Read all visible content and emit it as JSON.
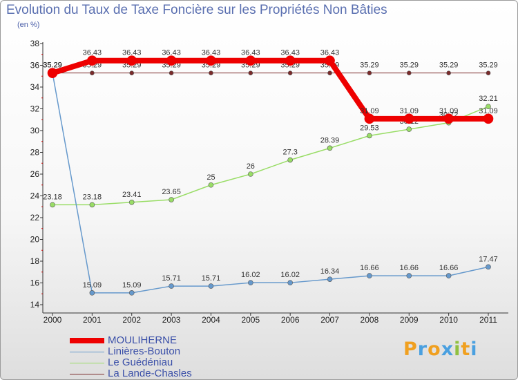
{
  "page": {
    "title": "Evolution du Taux de Taxe Foncière sur les Propriétés Non Bâties",
    "unit": "(en %)"
  },
  "chart_data": {
    "type": "line",
    "title": "Evolution du Taux de Taxe Foncière sur les Propriétés Non Bâties",
    "ylabel": "(en %)",
    "xlabel": "",
    "ylim": [
      14,
      38
    ],
    "yticks": [
      14,
      16,
      18,
      20,
      22,
      24,
      26,
      28,
      30,
      32,
      34,
      36,
      38
    ],
    "categories": [
      "2000",
      "2001",
      "2002",
      "2003",
      "2004",
      "2005",
      "2006",
      "2007",
      "2008",
      "2009",
      "2010",
      "2011"
    ],
    "series": [
      {
        "name": "La Lande-Chasles",
        "color": "#7a2a2a",
        "values": [
          35.29,
          35.29,
          35.29,
          35.29,
          35.29,
          35.29,
          35.29,
          35.29,
          35.29,
          35.29,
          35.29,
          35.29
        ],
        "labels": [
          "35.29",
          "35.29",
          "35.29",
          "35.29",
          "35.29",
          "35.29",
          "35.29",
          "35.29",
          "35.29",
          "35.29",
          "35.29",
          "35.29"
        ]
      },
      {
        "name": "Le Guédéniau",
        "color": "#99dd66",
        "values": [
          23.18,
          23.18,
          23.41,
          23.65,
          25,
          26,
          27.3,
          28.39,
          29.53,
          30.12,
          30.72,
          32.21
        ],
        "labels": [
          "23.18",
          "23.18",
          "23.41",
          "23.65",
          "25",
          "26",
          "27.3",
          "28.39",
          "29.53",
          "30.12",
          "30.72",
          "32.21"
        ]
      },
      {
        "name": "Linières-Bouton",
        "color": "#6699cc",
        "values": [
          35.29,
          15.09,
          15.09,
          15.71,
          15.71,
          16.02,
          16.02,
          16.34,
          16.66,
          16.66,
          16.66,
          17.47
        ],
        "labels": [
          "35.29",
          "15.09",
          "15.09",
          "15.71",
          "15.71",
          "16.02",
          "16.02",
          "16.34",
          "16.66",
          "16.66",
          "16.66",
          "17.47"
        ]
      },
      {
        "name": "MOULIHERNE",
        "color": "#ee0000",
        "values": [
          35.29,
          36.43,
          36.43,
          36.43,
          36.43,
          36.43,
          36.43,
          36.43,
          31.09,
          31.09,
          31.09,
          31.09
        ],
        "labels": [
          "35.29",
          "36.43",
          "36.43",
          "36.43",
          "36.43",
          "36.43",
          "36.43",
          "36.43",
          "31.09",
          "31.09",
          "31.09",
          "31.09"
        ]
      }
    ],
    "legend": [
      "MOULIHERNE",
      "Linières-Bouton",
      "Le Guédéniau",
      "La Lande-Chasles"
    ]
  },
  "logo": {
    "letters": [
      "P",
      "r",
      "o",
      "x",
      "i",
      "t",
      "i"
    ],
    "colors": [
      "#f0a020",
      "#4aa0e0",
      "#f0a020",
      "#4aa0e0",
      "#90c040",
      "#f0a020",
      "#4aa0e0"
    ]
  }
}
